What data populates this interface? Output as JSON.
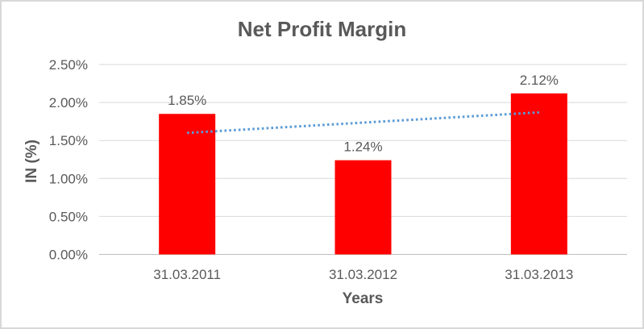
{
  "frame": {
    "background": "#FFFFFF",
    "border_color": "#D8D8D8"
  },
  "chart_data": {
    "type": "bar",
    "title": "Net Profit Margin",
    "xlabel": "Years",
    "ylabel": "IN (%)",
    "categories": [
      "31.03.2011",
      "31.03.2012",
      "31.03.2013"
    ],
    "values": [
      1.85,
      1.24,
      2.12
    ],
    "data_labels": [
      "1.85%",
      "1.24%",
      "2.12%"
    ],
    "ylim": [
      0,
      2.5
    ],
    "ytick_interval": 0.5,
    "ytick_labels": [
      "0.00%",
      "0.50%",
      "1.00%",
      "1.50%",
      "2.00%",
      "2.50%"
    ],
    "grid": true,
    "legend": "none",
    "bar_color": "#FF0000",
    "label_color": "#595959",
    "gridline_color": "#D9D9D9",
    "axis_line_color": "#BFBFBF",
    "trendline": {
      "type": "linear",
      "style": "dotted",
      "color": "#5B9BD5",
      "endpoint_values": [
        1.6,
        1.87
      ]
    }
  }
}
